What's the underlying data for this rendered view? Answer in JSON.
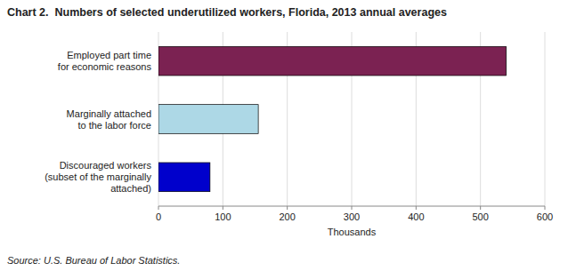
{
  "chart_data": {
    "type": "bar",
    "orientation": "horizontal",
    "title": "Chart 2.  Numbers of selected underutilized workers, Florida, 2013 annual averages",
    "categories": [
      "Discouraged workers\n(subset of the marginally\nattached)",
      "Marginally attached\nto the labor force",
      "Employed part time\nfor economic reasons"
    ],
    "values": [
      80,
      155,
      540
    ],
    "colors": [
      "#0000cc",
      "#add8e6",
      "#7b2252"
    ],
    "x_label": "Thousands",
    "xlim": [
      0,
      600
    ],
    "xticks": [
      0,
      100,
      200,
      300,
      400,
      500,
      600
    ],
    "grid": true,
    "source": "Source: U.S. Bureau of Labor Statistics."
  }
}
